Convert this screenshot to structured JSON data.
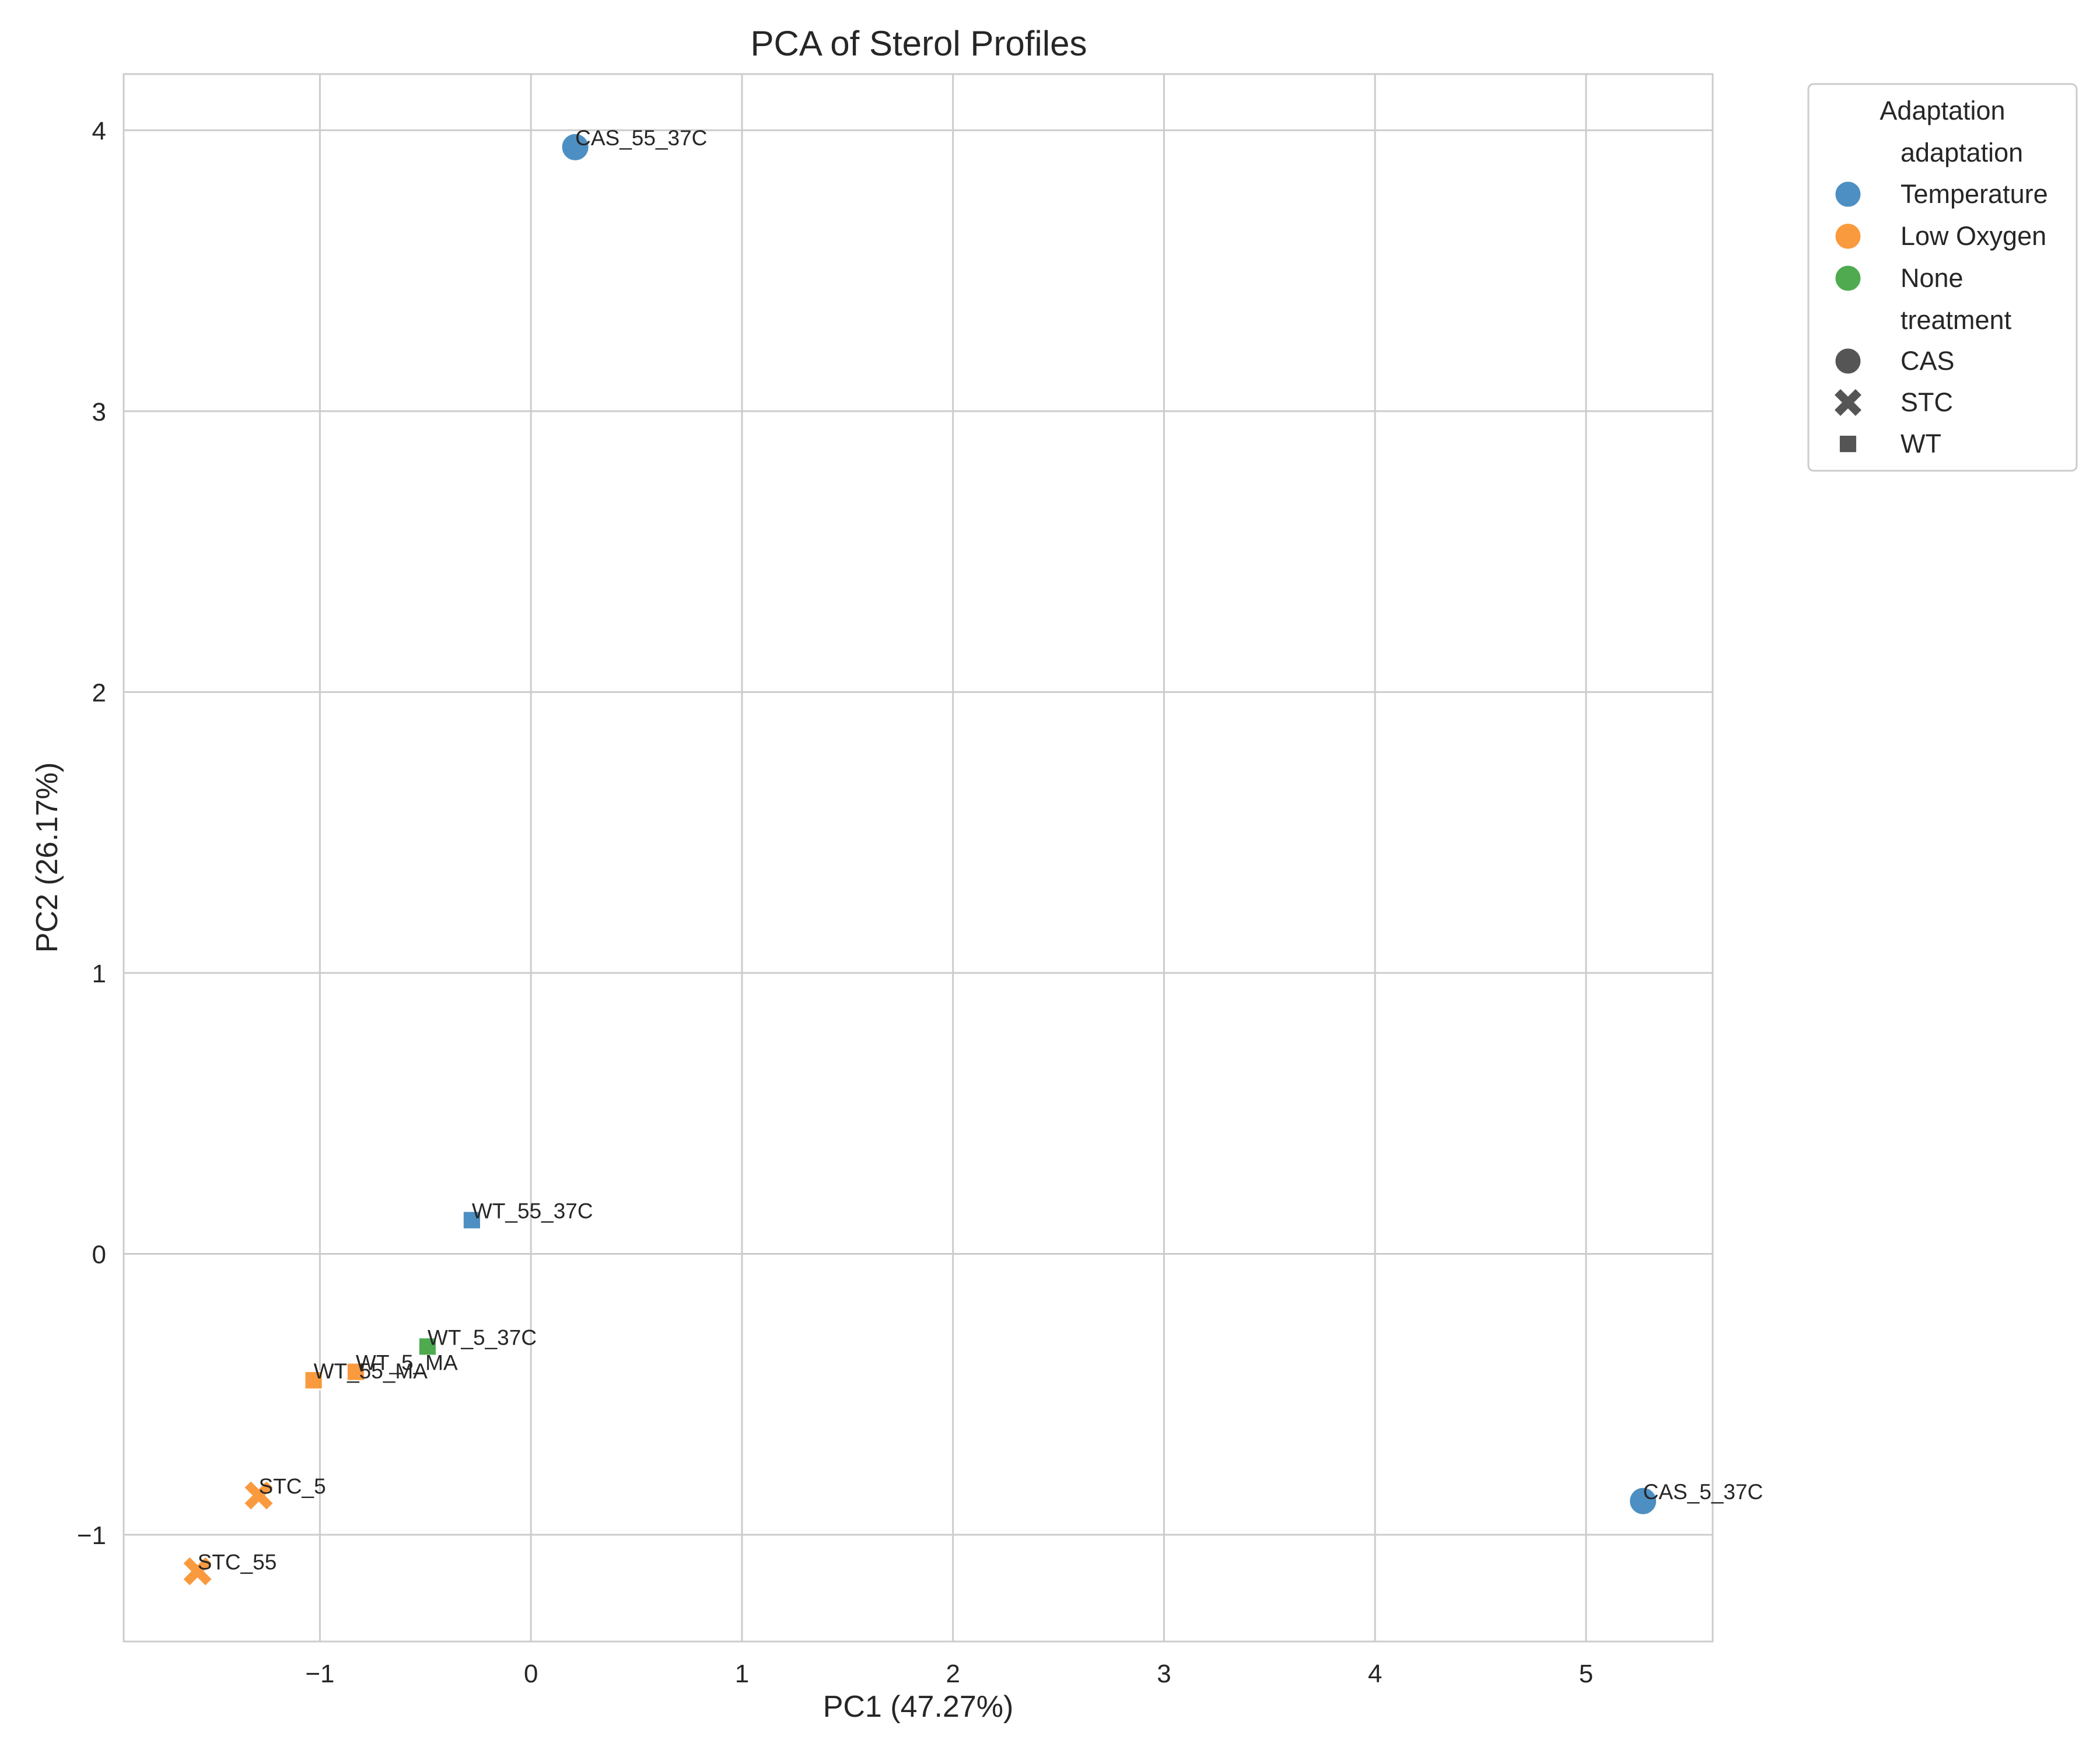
{
  "chart_data": {
    "type": "scatter",
    "title": "PCA of Sterol Profiles",
    "xlabel": "PC1 (47.27%)",
    "ylabel": "PC2 (26.17%)",
    "xlim": [
      -1.93,
      5.6
    ],
    "ylim": [
      -1.38,
      4.2
    ],
    "xticks": [
      -1,
      0,
      1,
      2,
      3,
      4,
      5
    ],
    "yticks": [
      -1,
      0,
      1,
      2,
      3,
      4
    ],
    "xtick_labels": [
      "−1",
      "0",
      "1",
      "2",
      "3",
      "4",
      "5"
    ],
    "ytick_labels": [
      "−1",
      "0",
      "1",
      "2",
      "3",
      "4"
    ],
    "grid": true,
    "legend_placement": "outside-top-right",
    "legend": {
      "title": "Adaptation",
      "hue_heading": "adaptation",
      "hue_entries": [
        {
          "label": "Temperature",
          "color": "#3a83bb"
        },
        {
          "label": "Low Oxygen",
          "color": "#f98f2a"
        },
        {
          "label": "None",
          "color": "#3da23d"
        }
      ],
      "style_heading": "treatment",
      "style_entries": [
        {
          "label": "CAS",
          "marker": "circle",
          "color": "#555555"
        },
        {
          "label": "STC",
          "marker": "x",
          "color": "#555555"
        },
        {
          "label": "WT",
          "marker": "square",
          "color": "#555555"
        }
      ]
    },
    "points": [
      {
        "label": "CAS_55_37C",
        "x": 0.21,
        "y": 3.94,
        "adaptation": "Temperature",
        "treatment": "CAS"
      },
      {
        "label": "CAS_5_37C",
        "x": 5.27,
        "y": -0.88,
        "adaptation": "Temperature",
        "treatment": "CAS"
      },
      {
        "label": "WT_55_37C",
        "x": -0.28,
        "y": 0.12,
        "adaptation": "Temperature",
        "treatment": "WT"
      },
      {
        "label": "WT_5_37C",
        "x": -0.49,
        "y": -0.33,
        "adaptation": "None",
        "treatment": "WT"
      },
      {
        "label": "WT_5_MA",
        "x": -0.83,
        "y": -0.42,
        "adaptation": "Low Oxygen",
        "treatment": "WT"
      },
      {
        "label": "WT_55_MA",
        "x": -1.03,
        "y": -0.45,
        "adaptation": "Low Oxygen",
        "treatment": "WT"
      },
      {
        "label": "STC_5",
        "x": -1.29,
        "y": -0.86,
        "adaptation": "Low Oxygen",
        "treatment": "STC"
      },
      {
        "label": "STC_55",
        "x": -1.58,
        "y": -1.13,
        "adaptation": "Low Oxygen",
        "treatment": "STC"
      }
    ]
  }
}
